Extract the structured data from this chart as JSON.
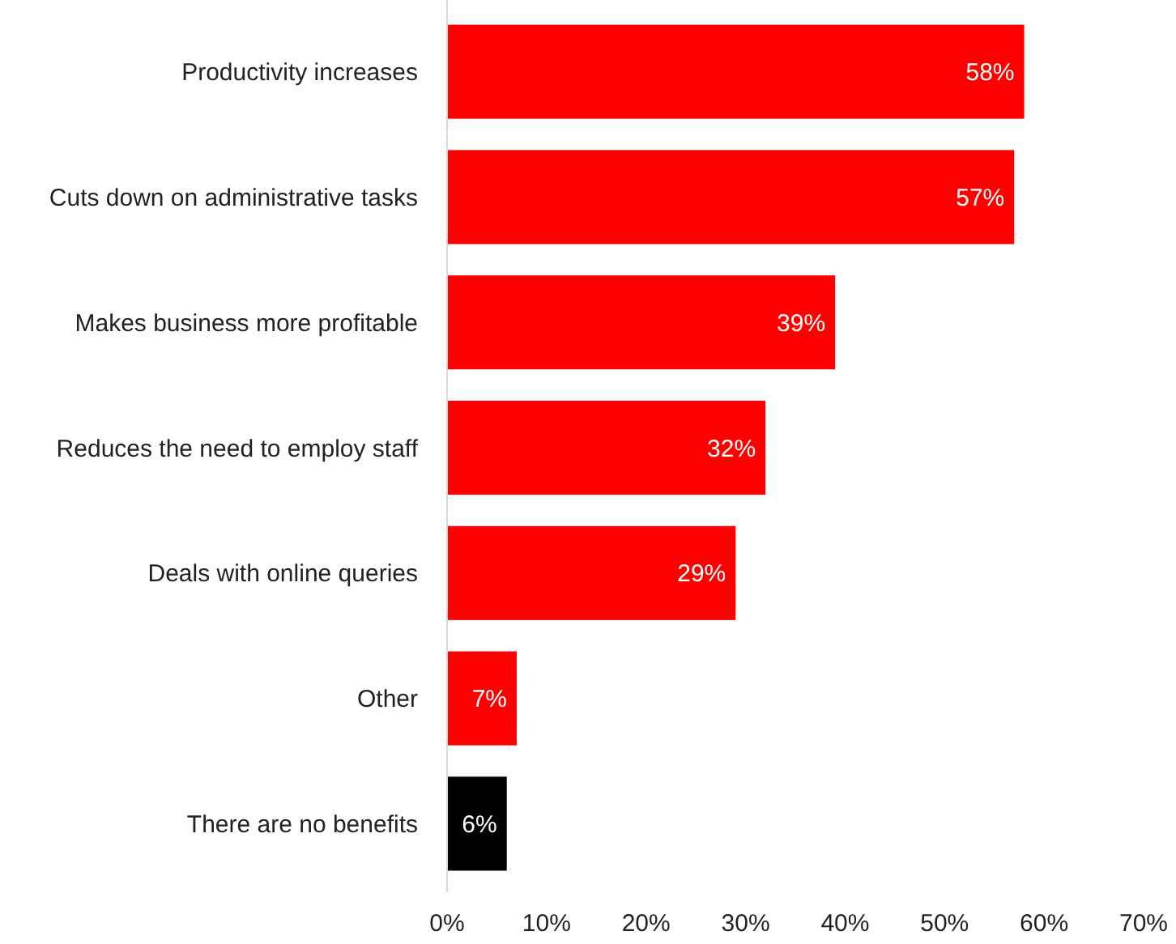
{
  "chart_data": {
    "type": "bar",
    "orientation": "horizontal",
    "categories": [
      "Productivity increases",
      "Cuts down on administrative tasks",
      "Makes business more profitable",
      "Reduces the need to employ staff",
      "Deals with online queries",
      "Other",
      "There are no benefits"
    ],
    "values": [
      58,
      57,
      39,
      32,
      29,
      7,
      6
    ],
    "colors": [
      "#ff0000",
      "#ff0000",
      "#ff0000",
      "#ff0000",
      "#ff0000",
      "#ff0000",
      "#000000"
    ],
    "value_labels": [
      "58%",
      "57%",
      "39%",
      "32%",
      "29%",
      "7%",
      "6%"
    ],
    "xlim": [
      0,
      70
    ],
    "xticks": [
      {
        "value": 0,
        "label": "0%"
      },
      {
        "value": 10,
        "label": "10%"
      },
      {
        "value": 20,
        "label": "20%"
      },
      {
        "value": 30,
        "label": "30%"
      },
      {
        "value": 40,
        "label": "40%"
      },
      {
        "value": 50,
        "label": "50%"
      },
      {
        "value": 60,
        "label": "60%"
      },
      {
        "value": 70,
        "label": "70%"
      }
    ],
    "grid": false
  }
}
